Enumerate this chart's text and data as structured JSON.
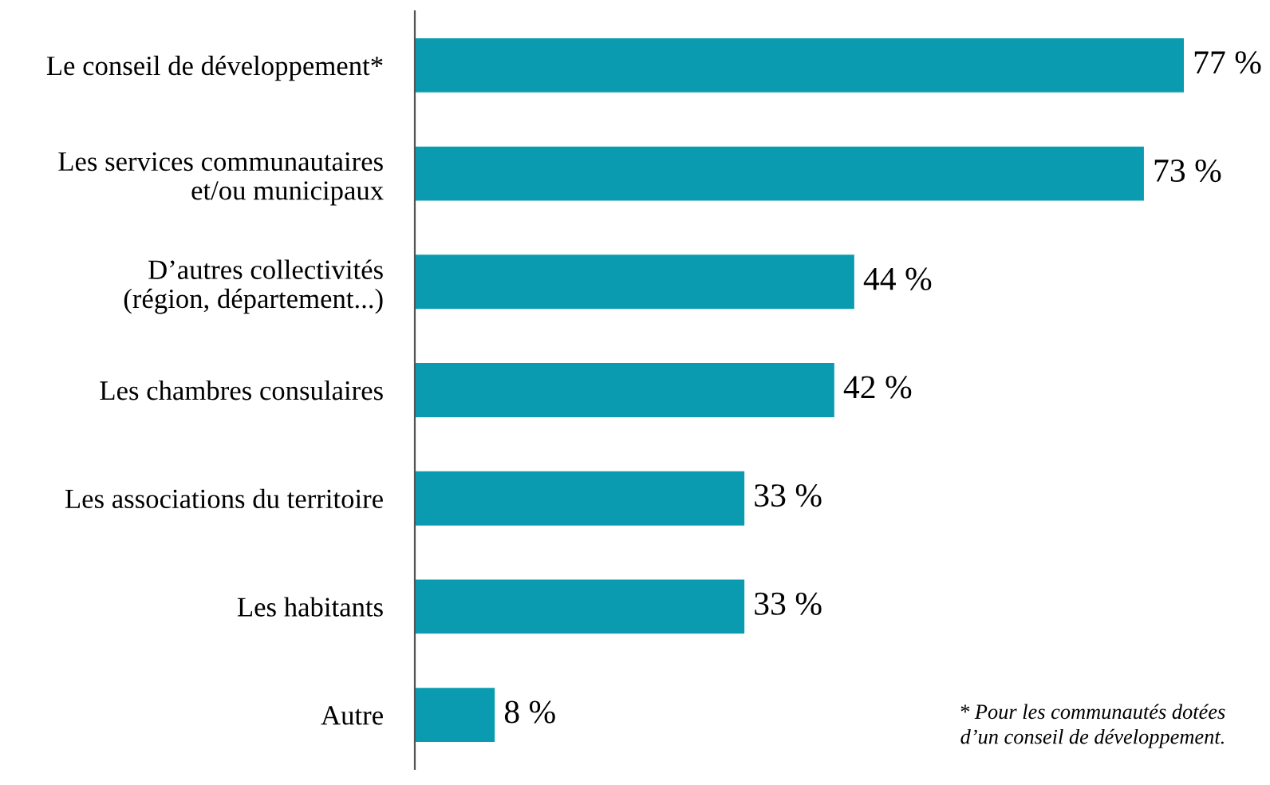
{
  "chart_data": {
    "type": "bar",
    "orientation": "horizontal",
    "categories": [
      "Le conseil de développement*",
      "Les services communautaires\net/ou municipaux",
      "D’autres collectivités\n(région, département...)",
      "Les chambres consulaires",
      "Les associations du territoire",
      "Les habitants",
      "Autre"
    ],
    "values": [
      77,
      73,
      44,
      42,
      33,
      33,
      8
    ],
    "value_labels": [
      "77 %",
      "73 %",
      "44 %",
      "42 %",
      "33 %",
      "33 %",
      "8 %"
    ],
    "color": "#0a9bb1",
    "annotations": [
      "* Pour les communautés dotées\nd’un conseil de développement."
    ]
  }
}
